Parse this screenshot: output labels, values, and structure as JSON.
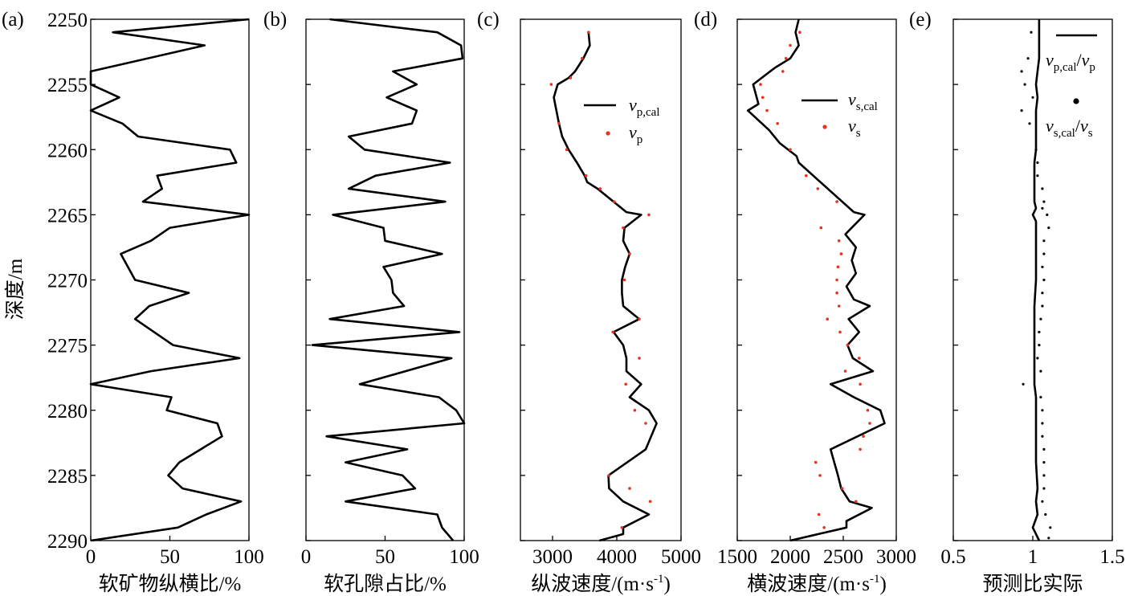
{
  "figure": {
    "ylabel": "深度/m"
  },
  "chart_data": [
    {
      "panel": "(a)",
      "type": "line",
      "xlabel": "软矿物纵横比/%",
      "xlim": [
        0,
        100
      ],
      "xticks": [
        0,
        50,
        100
      ],
      "ylim": [
        2250,
        2290
      ],
      "yticks": [
        2250,
        2255,
        2260,
        2265,
        2270,
        2275,
        2280,
        2285,
        2290
      ],
      "y_inverted": true,
      "series": [
        {
          "style": "line",
          "color": "#000000",
          "x": [
            100,
            14,
            72,
            0,
            0,
            18,
            0,
            20,
            30,
            88,
            92,
            42,
            45,
            33,
            100,
            50,
            38,
            19,
            28,
            62,
            37,
            28,
            52,
            94,
            38,
            0,
            51,
            48,
            80,
            83,
            56,
            49,
            58,
            95,
            73,
            55,
            0
          ],
          "y": [
            2250,
            2251,
            2252,
            2254,
            2255,
            2256,
            2257,
            2258,
            2259,
            2260,
            2261,
            2262,
            2263,
            2264,
            2265,
            2266,
            2267,
            2268,
            2270,
            2271,
            2272,
            2273,
            2275,
            2276,
            2277,
            2278,
            2279,
            2280,
            2281,
            2282,
            2284,
            2285,
            2286,
            2287,
            2288,
            2289,
            2290
          ]
        }
      ]
    },
    {
      "panel": "(b)",
      "type": "line",
      "xlabel": "软孔隙占比/%",
      "xlim": [
        0,
        100
      ],
      "xticks": [
        0,
        50,
        100
      ],
      "ylim": [
        2250,
        2290
      ],
      "yticks": [
        2250,
        2255,
        2260,
        2265,
        2270,
        2275,
        2280,
        2285,
        2290
      ],
      "y_inverted": true,
      "series": [
        {
          "style": "line",
          "color": "#000000",
          "x": [
            15,
            83,
            98,
            99,
            55,
            70,
            51,
            70,
            67,
            27,
            37,
            91,
            44,
            27,
            88,
            17,
            49,
            50,
            86,
            49,
            54,
            55,
            62,
            15,
            97,
            4,
            92,
            34,
            84,
            95,
            100,
            13,
            64,
            25,
            61,
            69,
            25,
            83,
            86,
            93
          ],
          "y": [
            2250,
            2251,
            2252,
            2253,
            2254,
            2255,
            2256,
            2257,
            2258,
            2259,
            2260,
            2261,
            2262,
            2263,
            2264,
            2265,
            2266,
            2267,
            2268,
            2269,
            2270,
            2271,
            2272,
            2273,
            2274,
            2275,
            2276,
            2278,
            2279,
            2280,
            2281,
            2282,
            2283,
            2284,
            2285,
            2286,
            2287,
            2288,
            2289,
            2290
          ]
        }
      ]
    },
    {
      "panel": "(c)",
      "type": "line",
      "xlabel": "纵波速度/(m·s-1)",
      "xlim": [
        2500,
        5000
      ],
      "xticks": [
        3000,
        4000,
        5000
      ],
      "ylim": [
        2250,
        2290
      ],
      "yticks": [
        2250,
        2255,
        2260,
        2265,
        2270,
        2275,
        2280,
        2285,
        2290
      ],
      "y_inverted": true,
      "legend": [
        "v_p,cal",
        "v_p"
      ],
      "series": [
        {
          "name": "vp,cal",
          "style": "line",
          "color": "#000000",
          "x": [
            3560,
            3580,
            3480,
            3350,
            3250,
            3080,
            3020,
            3060,
            3100,
            3150,
            3250,
            3380,
            3500,
            3540,
            3700,
            3950,
            4150,
            4380,
            4120,
            4100,
            4200,
            4130,
            4080,
            4080,
            4100,
            4350,
            3950,
            4100,
            4150,
            4150,
            4380,
            4200,
            4500,
            4620,
            4450,
            3870,
            3880,
            4100,
            4500,
            4100,
            4100,
            3730
          ],
          "y": [
            2251,
            2252,
            2253,
            2254,
            2254.5,
            2255,
            2256,
            2257,
            2258,
            2259,
            2260,
            2261,
            2262,
            2262.5,
            2263,
            2264,
            2264.8,
            2265,
            2266,
            2267,
            2268,
            2269,
            2270,
            2271,
            2272,
            2273,
            2274,
            2275,
            2276,
            2277,
            2278,
            2279,
            2280,
            2281,
            2283,
            2285,
            2286,
            2287,
            2288,
            2289,
            2289.5,
            2290
          ]
        },
        {
          "name": "vp",
          "style": "scatter",
          "color": "#e8321e",
          "x": [
            3560,
            3460,
            3280,
            2980,
            3100,
            3220,
            3520,
            3740,
            3960,
            4500,
            4100,
            4200,
            4120,
            4350,
            3940,
            4350,
            4140,
            4280,
            4450,
            3880,
            4200,
            4520,
            4080
          ],
          "y": [
            2251,
            2253,
            2254.5,
            2255,
            2258,
            2260,
            2262,
            2263,
            2264,
            2265,
            2266,
            2268,
            2270,
            2273,
            2274,
            2276,
            2278,
            2280,
            2281,
            2285,
            2286,
            2287,
            2289
          ]
        }
      ]
    },
    {
      "panel": "(d)",
      "type": "line",
      "xlabel": "横波速度/(m·s-1)",
      "xlim": [
        1500,
        3000
      ],
      "xticks": [
        1500,
        2000,
        2500,
        3000
      ],
      "ylim": [
        2250,
        2290
      ],
      "yticks": [
        2250,
        2255,
        2260,
        2265,
        2270,
        2275,
        2280,
        2285,
        2290
      ],
      "y_inverted": true,
      "legend": [
        "v_s,cal",
        "v_s"
      ],
      "series": [
        {
          "name": "vs,cal",
          "style": "line",
          "color": "#000000",
          "x": [
            2080,
            2050,
            2080,
            2000,
            1860,
            1810,
            1650,
            1700,
            1600,
            1800,
            1900,
            2060,
            2080,
            2600,
            2700,
            2520,
            2620,
            2580,
            2620,
            2530,
            2600,
            2750,
            2550,
            2650,
            2540,
            2590,
            2780,
            2380,
            2600,
            2850,
            2890,
            2380,
            2450,
            2480,
            2560,
            2770,
            2530,
            2530,
            2000
          ],
          "y": [
            2250,
            2251,
            2252,
            2253,
            2253.7,
            2254,
            2255,
            2256.5,
            2257,
            2258.5,
            2259.5,
            2260.5,
            2261,
            2264.8,
            2265,
            2266.5,
            2267.5,
            2268.5,
            2269.5,
            2270.5,
            2271.5,
            2272,
            2273,
            2274,
            2275,
            2276,
            2277,
            2278,
            2279,
            2280,
            2281,
            2283,
            2285,
            2286,
            2287,
            2287.5,
            2288.5,
            2289,
            2290
          ]
        },
        {
          "name": "vs",
          "style": "scatter",
          "color": "#e8321e",
          "x": [
            2090,
            2000,
            1960,
            1930,
            1720,
            1740,
            1780,
            1880,
            2000,
            2150,
            2260,
            2440,
            2290,
            2460,
            2480,
            2450,
            2440,
            2440,
            2460,
            2350,
            2470,
            2540,
            2650,
            2520,
            2660,
            2730,
            2750,
            2690,
            2660,
            2240,
            2280,
            2490,
            2620,
            2270,
            2320
          ],
          "y": [
            2251,
            2252,
            2253,
            2254,
            2255,
            2256,
            2257,
            2258,
            2260,
            2262,
            2263,
            2264,
            2266,
            2267,
            2268,
            2269,
            2270,
            2271,
            2272,
            2273,
            2274,
            2275,
            2276,
            2277,
            2278,
            2280,
            2281,
            2282,
            2283,
            2284,
            2285,
            2286,
            2287,
            2288,
            2289
          ]
        }
      ]
    },
    {
      "panel": "(e)",
      "type": "scatter",
      "xlabel": "预测比实际",
      "xlim": [
        0.5,
        1.5
      ],
      "xticks": [
        0.5,
        1.0,
        1.5
      ],
      "ylim": [
        2250,
        2290
      ],
      "yticks": [
        2250,
        2255,
        2260,
        2265,
        2270,
        2275,
        2280,
        2285,
        2290
      ],
      "y_inverted": true,
      "legend": [
        "v_p,cal/v_p",
        "v_s,cal/v_s"
      ],
      "series": [
        {
          "name": "vp,cal/vp",
          "style": "line",
          "color": "#000000",
          "x": [
            1.04,
            1.04,
            1.04,
            1.03,
            1.02,
            1.03,
            1.02,
            1.02,
            1.02,
            1.01,
            1.01,
            1.01,
            1.01,
            1.02,
            1.0,
            1.02,
            1.02,
            1.02,
            1.02,
            1.01,
            1.01,
            1.01,
            1.01,
            1.02,
            1.02,
            1.02,
            1.02,
            1.03,
            1.02,
            1.03,
            1.0,
            1.02,
            1.04
          ],
          "y": [
            2250,
            2252,
            2253,
            2254,
            2255,
            2256,
            2257,
            2258,
            2260,
            2261,
            2262,
            2263,
            2264,
            2264.5,
            2265,
            2265.5,
            2266,
            2268,
            2270,
            2272,
            2274,
            2276,
            2278,
            2279,
            2280,
            2282,
            2284,
            2286,
            2287,
            2288,
            2289,
            2289.5,
            2290
          ]
        },
        {
          "name": "vs,cal/vs",
          "style": "scatter",
          "color": "#000000",
          "x": [
            0.99,
            0.97,
            0.93,
            0.95,
            1.0,
            0.93,
            0.98,
            1.02,
            1.03,
            1.03,
            1.06,
            1.07,
            1.06,
            1.09,
            1.1,
            1.07,
            1.07,
            1.06,
            1.07,
            1.06,
            1.06,
            1.05,
            1.04,
            1.04,
            1.03,
            1.05,
            0.94,
            1.05,
            1.06,
            1.06,
            1.06,
            1.07,
            1.07,
            1.07,
            1.07,
            1.06,
            1.08,
            1.11,
            1.1
          ],
          "y": [
            2251,
            2253,
            2254,
            2255,
            2256,
            2257,
            2258,
            2260,
            2261,
            2262,
            2263,
            2264,
            2264.5,
            2265,
            2266,
            2267,
            2268,
            2269,
            2270,
            2271,
            2272,
            2273,
            2274,
            2275,
            2276,
            2277,
            2278,
            2279,
            2280,
            2281,
            2282,
            2283,
            2284,
            2285,
            2286,
            2287,
            2288,
            2289,
            2289.8
          ]
        }
      ]
    }
  ]
}
